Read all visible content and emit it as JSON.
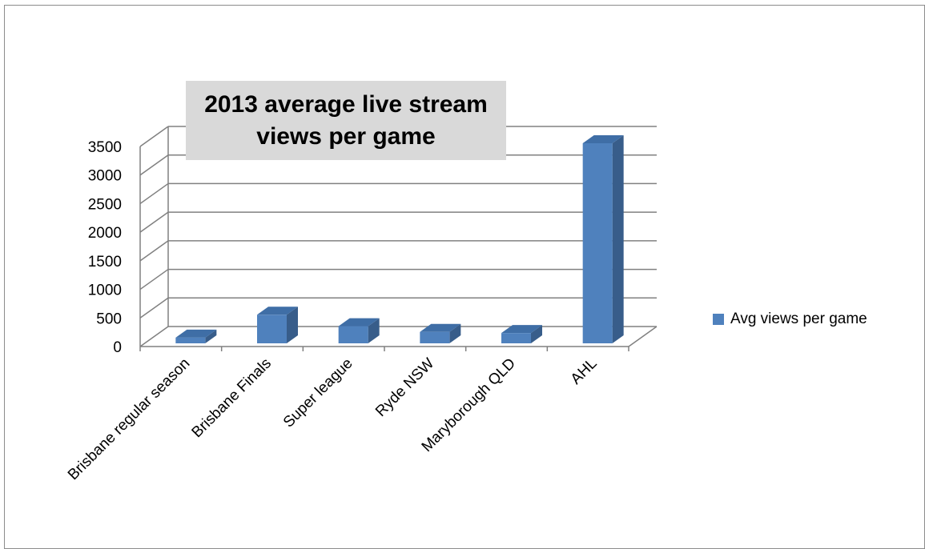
{
  "chart_data": {
    "type": "bar",
    "title": "2013 average live stream views per game",
    "categories": [
      "Brisbane regular season",
      "Brisbane Finals",
      "Super league",
      "Ryde NSW",
      "Maryborough QLD",
      "AHL"
    ],
    "series": [
      {
        "name": "Avg views per game",
        "values": [
          100,
          500,
          300,
          200,
          180,
          3500
        ]
      }
    ],
    "ylim": [
      0,
      3500
    ],
    "yticks": [
      "0",
      "500",
      "1000",
      "1500",
      "2000",
      "2500",
      "3000",
      "3500"
    ],
    "grid": true,
    "legend": "right",
    "style": "3d",
    "colors": {
      "bar_front": "#4f81bd",
      "bar_side": "#385d8a",
      "bar_top": "#3f6ea6",
      "grid": "#808080"
    }
  }
}
